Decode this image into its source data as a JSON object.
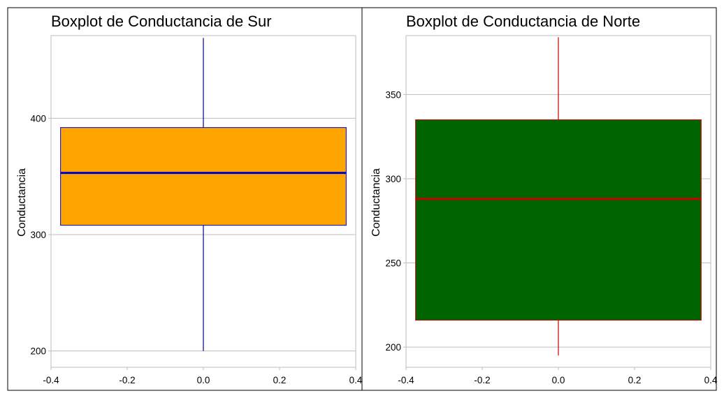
{
  "chart_data": [
    {
      "type": "boxplot",
      "title": "Boxplot de Conductancia de Sur",
      "xlabel": "",
      "ylabel": "Conductancia",
      "xlim": [
        -0.4,
        0.4
      ],
      "ylim": [
        186,
        471
      ],
      "xticks": [
        "-0.4",
        "-0.2",
        "0.0",
        "0.2",
        "0.4"
      ],
      "xtick_values": [
        -0.4,
        -0.2,
        0.0,
        0.2,
        0.4
      ],
      "yticks": [
        "200",
        "300",
        "400"
      ],
      "ytick_values": [
        200,
        300,
        400
      ],
      "grid": true,
      "box": {
        "min": 200,
        "q1": 308,
        "median": 353,
        "q3": 392,
        "max": 469,
        "x_left": -0.375,
        "x_right": 0.375
      },
      "colors": {
        "fill": "#FFA500",
        "line": "#0000CD",
        "whisker": "#00008B"
      }
    },
    {
      "type": "boxplot",
      "title": "Boxplot de Conductancia de Norte",
      "xlabel": "",
      "ylabel": "Conductancia",
      "xlim": [
        -0.4,
        0.4
      ],
      "ylim": [
        188,
        385
      ],
      "xticks": [
        "-0.4",
        "-0.2",
        "0.0",
        "0.2",
        "0.4"
      ],
      "xtick_values": [
        -0.4,
        -0.2,
        0.0,
        0.2,
        0.4
      ],
      "yticks": [
        "200",
        "250",
        "300",
        "350"
      ],
      "ytick_values": [
        200,
        250,
        300,
        350
      ],
      "grid": true,
      "box": {
        "min": 195,
        "q1": 216,
        "median": 288,
        "q3": 335,
        "max": 384,
        "x_left": -0.375,
        "x_right": 0.375
      },
      "colors": {
        "fill": "#006400",
        "line": "#CC0000",
        "whisker": "#CC0000"
      }
    }
  ]
}
